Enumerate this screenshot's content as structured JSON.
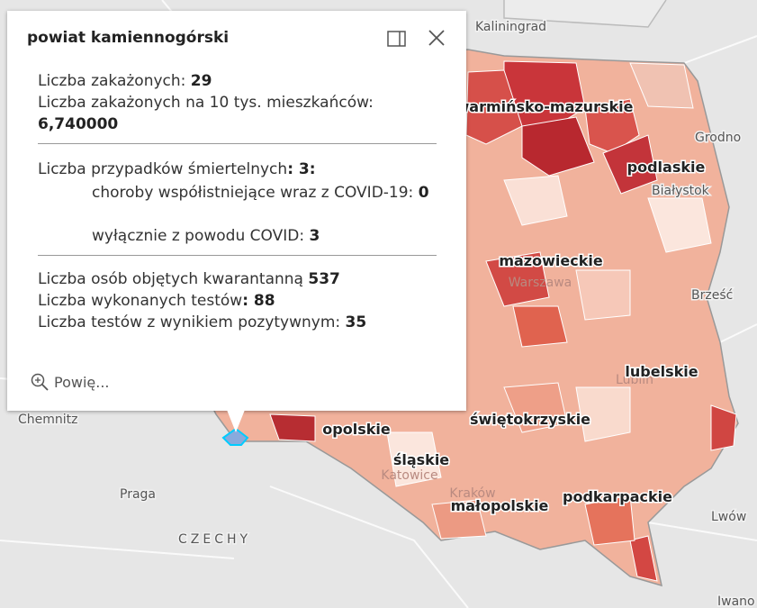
{
  "popup": {
    "title": "powiat kamiennogórski",
    "sections": [
      [
        {
          "label": "Liczba zakażonych: ",
          "value": "29"
        },
        {
          "label": "Liczba zakażonych na 10 tys. mieszkańców:",
          "value": "6,740000"
        }
      ],
      [
        {
          "label": "Liczba przypadków śmiertelnych",
          "value": ": 3:"
        },
        {
          "label": "choroby współistniejące wraz z COVID-19: ",
          "value": "0"
        },
        {
          "label": "wyłącznie z powodu COVID: ",
          "value": "3"
        }
      ],
      [
        {
          "label": "Liczba osób objętych kwarantanną ",
          "value": "537"
        },
        {
          "label": "Liczba wykonanych testów",
          "value": ": 88"
        },
        {
          "label": "Liczba testów z wynikiem pozytywnym: ",
          "value": "35"
        }
      ]
    ],
    "zoom_label": "Powię..."
  },
  "map_labels": {
    "cities": [
      "Kaliningrad",
      "Grodno",
      "Białystok",
      "Brześć",
      "Lwów",
      "Iwano",
      "Chemnitz",
      "Praga",
      "CZECHY",
      "Warszawa",
      "Lublin",
      "Kraków",
      "Katowice"
    ],
    "regions": [
      "warmińsko-mazurskie",
      "podlaskie",
      "mazowieckie",
      "lubelskie",
      "świętokrzyskie",
      "opolskie",
      "śląskie",
      "małopolskie",
      "podkarpackie"
    ]
  }
}
